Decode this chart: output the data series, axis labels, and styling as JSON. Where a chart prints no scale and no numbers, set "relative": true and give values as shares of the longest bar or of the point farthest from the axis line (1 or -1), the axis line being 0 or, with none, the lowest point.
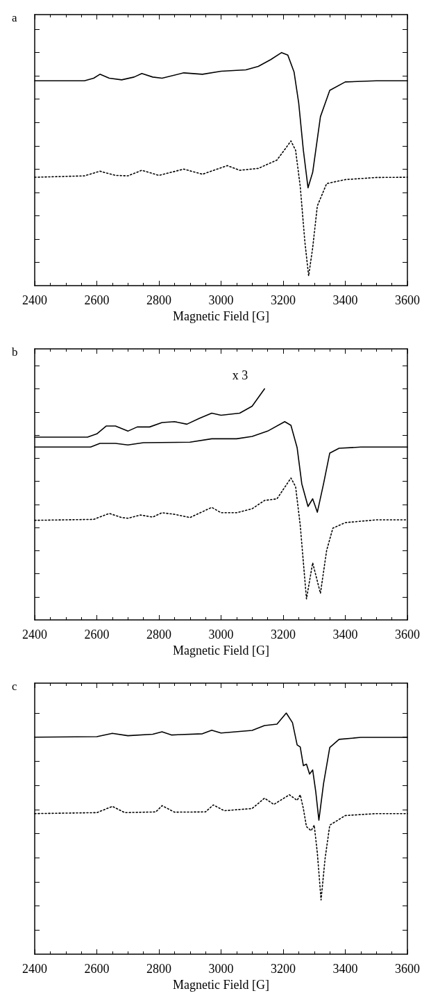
{
  "chart_data": [
    {
      "type": "line",
      "title": "a",
      "xlabel": "Magnetic Field [G]",
      "relative": true,
      "xlim": [
        2400,
        3600
      ],
      "xticks": [
        2400,
        2600,
        2800,
        3000,
        3200,
        3400,
        3600
      ],
      "tick_labels": "x",
      "series": [
        {
          "color": "#000000",
          "line_style": "solid",
          "x": [
            2400,
            2560,
            2590,
            2610,
            2640,
            2680,
            2720,
            2745,
            2780,
            2810,
            2880,
            2940,
            3000,
            3080,
            3120,
            3160,
            3195,
            3215,
            3235,
            3250,
            3265,
            3280,
            3295,
            3320,
            3350,
            3400,
            3500,
            3600
          ],
          "values": [
            0.879,
            0.879,
            0.89,
            0.907,
            0.89,
            0.883,
            0.895,
            0.91,
            0.895,
            0.89,
            0.913,
            0.907,
            0.92,
            0.926,
            0.941,
            0.97,
            1,
            0.989,
            0.917,
            0.784,
            0.581,
            0.42,
            0.486,
            0.725,
            0.838,
            0.874,
            0.879,
            0.879
          ]
        },
        {
          "color": "#000000",
          "line_style": "dotted",
          "x": [
            2400,
            2560,
            2610,
            2660,
            2700,
            2745,
            2800,
            2880,
            2940,
            3020,
            3060,
            3120,
            3180,
            3210,
            3225,
            3240,
            3255,
            3270,
            3282,
            3295,
            3310,
            3340,
            3400,
            3500,
            3600
          ],
          "values": [
            0.465,
            0.471,
            0.491,
            0.473,
            0.471,
            0.495,
            0.473,
            0.5,
            0.478,
            0.515,
            0.495,
            0.503,
            0.539,
            0.593,
            0.621,
            0.581,
            0.425,
            0.186,
            0.042,
            0.162,
            0.342,
            0.438,
            0.455,
            0.464,
            0.465
          ]
        }
      ]
    },
    {
      "type": "line",
      "title": "b",
      "xlabel": "Magnetic Field [G]",
      "relative": true,
      "xlim": [
        2400,
        3600
      ],
      "xticks": [
        2400,
        2600,
        2800,
        3000,
        3200,
        3400,
        3600
      ],
      "tick_labels": "x",
      "annotations": [
        "x 3"
      ],
      "series": [
        {
          "color": "#000000",
          "line_style": "solid",
          "x": [
            2400,
            2570,
            2600,
            2630,
            2660,
            2700,
            2730,
            2770,
            2810,
            2850,
            2890,
            2930,
            2970,
            3000,
            3060,
            3100,
            3140
          ],
          "values": [
            0.791,
            0.791,
            0.805,
            0.839,
            0.839,
            0.817,
            0.835,
            0.835,
            0.854,
            0.858,
            0.847,
            0.872,
            0.895,
            0.886,
            0.895,
            0.925,
            1
          ]
        },
        {
          "color": "#000000",
          "line_style": "solid",
          "x": [
            2400,
            2580,
            2610,
            2660,
            2700,
            2750,
            2900,
            2970,
            3050,
            3100,
            3150,
            3205,
            3225,
            3245,
            3260,
            3280,
            3295,
            3310,
            3330,
            3350,
            3380,
            3450,
            3600
          ],
          "values": [
            0.748,
            0.748,
            0.764,
            0.764,
            0.757,
            0.767,
            0.769,
            0.784,
            0.784,
            0.794,
            0.817,
            0.858,
            0.842,
            0.745,
            0.589,
            0.491,
            0.524,
            0.466,
            0.589,
            0.722,
            0.743,
            0.748,
            0.748
          ]
        },
        {
          "color": "#000000",
          "line_style": "dotted",
          "x": [
            2400,
            2590,
            2640,
            2680,
            2700,
            2740,
            2780,
            2810,
            2850,
            2900,
            2970,
            3000,
            3050,
            3100,
            3140,
            3180,
            3225,
            3240,
            3255,
            3275,
            3295,
            3320,
            3340,
            3360,
            3400,
            3500,
            3600
          ],
          "values": [
            0.431,
            0.435,
            0.461,
            0.443,
            0.44,
            0.454,
            0.445,
            0.464,
            0.457,
            0.443,
            0.487,
            0.464,
            0.464,
            0.481,
            0.517,
            0.524,
            0.614,
            0.577,
            0.409,
            0.091,
            0.247,
            0.115,
            0.301,
            0.397,
            0.421,
            0.433,
            0.433
          ]
        }
      ]
    },
    {
      "type": "line",
      "title": "c",
      "xlabel": "Magnetic Field [G]",
      "relative": true,
      "xlim": [
        2400,
        3600
      ],
      "xticks": [
        2400,
        2600,
        2800,
        3000,
        3200,
        3400,
        3600
      ],
      "tick_labels": "x",
      "series": [
        {
          "color": "#000000",
          "line_style": "solid",
          "x": [
            2400,
            2600,
            2650,
            2700,
            2780,
            2810,
            2840,
            2940,
            2970,
            3000,
            3100,
            3140,
            3180,
            3210,
            3230,
            3245,
            3255,
            3265,
            3275,
            3285,
            3295,
            3305,
            3315,
            3330,
            3350,
            3380,
            3450,
            3600
          ],
          "values": [
            0.9,
            0.902,
            0.916,
            0.906,
            0.912,
            0.922,
            0.909,
            0.914,
            0.929,
            0.917,
            0.928,
            0.948,
            0.954,
            1,
            0.96,
            0.868,
            0.859,
            0.782,
            0.788,
            0.747,
            0.764,
            0.673,
            0.556,
            0.707,
            0.857,
            0.891,
            0.899,
            0.899
          ]
        },
        {
          "color": "#000000",
          "line_style": "dotted",
          "x": [
            2400,
            2600,
            2650,
            2690,
            2790,
            2810,
            2850,
            2950,
            2975,
            3010,
            3100,
            3140,
            3170,
            3220,
            3245,
            3255,
            3265,
            3275,
            3290,
            3300,
            3310,
            3322,
            3335,
            3350,
            3400,
            3500,
            3600
          ],
          "values": [
            0.583,
            0.587,
            0.613,
            0.587,
            0.59,
            0.616,
            0.589,
            0.59,
            0.619,
            0.595,
            0.604,
            0.647,
            0.621,
            0.661,
            0.638,
            0.661,
            0.604,
            0.529,
            0.512,
            0.535,
            0.42,
            0.225,
            0.397,
            0.535,
            0.575,
            0.583,
            0.583
          ]
        }
      ]
    }
  ]
}
